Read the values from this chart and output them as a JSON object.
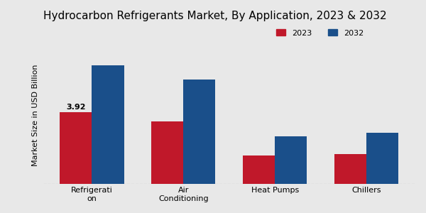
{
  "title": "Hydrocarbon Refrigerants Market, By Application, 2023 & 2032",
  "ylabel": "Market Size in USD Billion",
  "categories": [
    "Refrigerati\non",
    "Air\nConditioning",
    "Heat Pumps",
    "Chillers"
  ],
  "values_2023": [
    3.92,
    3.4,
    1.55,
    1.6
  ],
  "values_2032": [
    6.5,
    5.7,
    2.6,
    2.8
  ],
  "color_2023": "#c0182a",
  "color_2032": "#1a4f8a",
  "annotation_text": "3.92",
  "annotation_bar": 0,
  "background_color": "#e8e8e8",
  "bar_width": 0.35,
  "legend_labels": [
    "2023",
    "2032"
  ],
  "ylim": [
    0,
    7.5
  ],
  "title_fontsize": 11,
  "axis_label_fontsize": 8,
  "tick_fontsize": 8
}
